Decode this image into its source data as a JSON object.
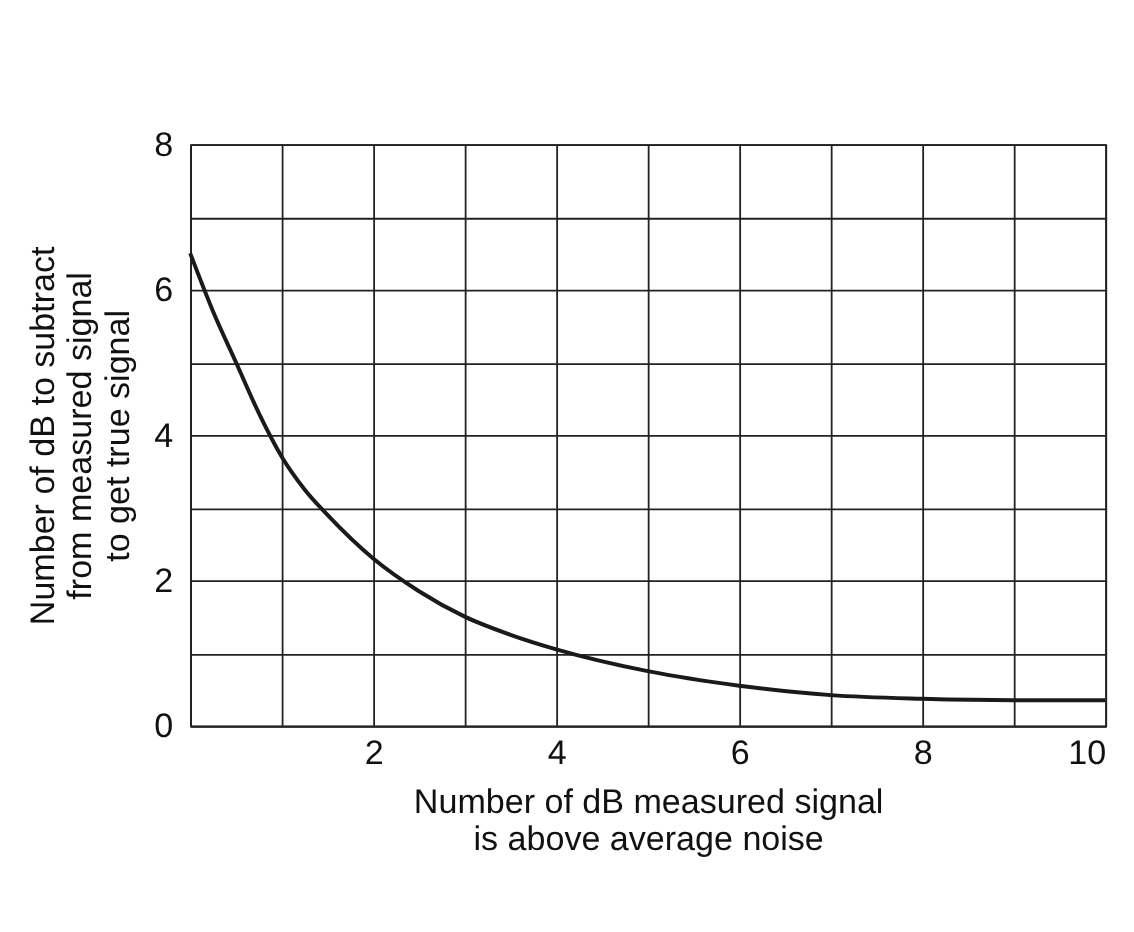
{
  "chart_data": {
    "type": "line",
    "xlabel": "Number of dB measured signal\nis above average noise",
    "ylabel": "Number of dB to subtract\nfrom measured signal\nto get true signal",
    "x": [
      0,
      0.25,
      0.5,
      0.75,
      1,
      1.25,
      1.5,
      2,
      2.5,
      3,
      3.5,
      4,
      5,
      6,
      7,
      8,
      9,
      10
    ],
    "series": [
      {
        "color": "#1a1a1a",
        "values": [
          6.5,
          5.7,
          5.0,
          4.3,
          3.7,
          3.25,
          2.9,
          2.3,
          1.85,
          1.5,
          1.25,
          1.05,
          0.75,
          0.55,
          0.42,
          0.37,
          0.35,
          0.35
        ]
      }
    ],
    "xlim": [
      0,
      10
    ],
    "ylim": [
      0,
      8
    ],
    "xticks": [
      {
        "value": 0,
        "label": null
      },
      {
        "value": 1,
        "label": null
      },
      2,
      {
        "value": 3,
        "label": null
      },
      4,
      {
        "value": 5,
        "label": null
      },
      6,
      {
        "value": 7,
        "label": null
      },
      8,
      {
        "value": 9,
        "label": null
      },
      10
    ],
    "yticks": [
      0,
      {
        "value": 1,
        "label": null
      },
      2,
      {
        "value": 3,
        "label": null
      },
      4,
      {
        "value": 5,
        "label": null
      },
      6,
      {
        "value": 7,
        "label": null
      },
      8
    ],
    "grid": true,
    "marker": "none",
    "line_style": "solid"
  }
}
